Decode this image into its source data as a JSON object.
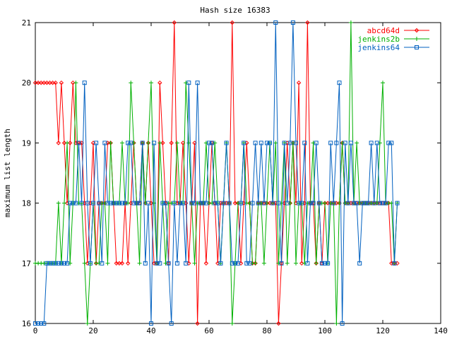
{
  "chart_data": {
    "type": "line",
    "title": "Hash size 16383",
    "xlabel": "",
    "ylabel": "maximum list length",
    "xlim": [
      0,
      140
    ],
    "ylim": [
      16,
      21
    ],
    "xticks": [
      0,
      20,
      40,
      60,
      80,
      100,
      120,
      140
    ],
    "yticks": [
      16,
      17,
      18,
      19,
      20,
      21
    ],
    "grid": false,
    "legend_position": "top-right",
    "series": [
      {
        "name": "abcd64d",
        "color": "#ff0000",
        "marker": "diamond",
        "x": [
          0,
          1,
          2,
          3,
          4,
          5,
          6,
          7,
          8,
          9,
          10,
          11,
          12,
          13,
          14,
          15,
          16,
          17,
          18,
          19,
          20,
          21,
          22,
          23,
          24,
          25,
          26,
          27,
          28,
          29,
          30,
          31,
          32,
          33,
          34,
          35,
          36,
          37,
          38,
          39,
          40,
          41,
          42,
          43,
          44,
          45,
          46,
          47,
          48,
          49,
          50,
          51,
          52,
          53,
          54,
          55,
          56,
          57,
          58,
          59,
          60,
          61,
          62,
          63,
          64,
          65,
          66,
          67,
          68,
          69,
          70,
          71,
          72,
          73,
          74,
          75,
          76,
          77,
          78,
          79,
          80,
          81,
          82,
          83,
          84,
          85,
          86,
          87,
          88,
          89,
          90,
          91,
          92,
          93,
          94,
          95,
          96,
          97,
          98,
          99,
          100,
          101,
          102,
          103,
          104,
          105,
          106,
          107,
          108,
          109,
          110,
          111,
          112,
          113,
          114,
          115,
          116,
          117,
          118,
          119,
          120,
          121,
          122,
          123,
          124,
          125
        ],
        "y": [
          20,
          20,
          20,
          20,
          20,
          20,
          20,
          20,
          19,
          20,
          19,
          18,
          19,
          20,
          19,
          19,
          19,
          18,
          17,
          18,
          19,
          17,
          18,
          18,
          18,
          19,
          19,
          18,
          17,
          17,
          17,
          18,
          17,
          18,
          19,
          18,
          18,
          19,
          18,
          19,
          18,
          17,
          17,
          20,
          19,
          18,
          17,
          19,
          21,
          18,
          18,
          19,
          18,
          17,
          18,
          19,
          16,
          18,
          18,
          17,
          18,
          19,
          18,
          17,
          18,
          18,
          18,
          18,
          21,
          18,
          18,
          17,
          18,
          19,
          18,
          17,
          17,
          18,
          18,
          18,
          18,
          18,
          18,
          18,
          16,
          17,
          18,
          19,
          18,
          19,
          18,
          20,
          17,
          18,
          21,
          18,
          18,
          17,
          18,
          17,
          18,
          18,
          18,
          18,
          18,
          18,
          19,
          18,
          18,
          18,
          18,
          18,
          18,
          18,
          18,
          18,
          18,
          18,
          18,
          18,
          18,
          18,
          18,
          17,
          17,
          17
        ]
      },
      {
        "name": "jenkins2b",
        "color": "#00b000",
        "marker": "plus",
        "x": [
          0,
          1,
          2,
          3,
          4,
          5,
          6,
          7,
          8,
          9,
          10,
          11,
          12,
          13,
          14,
          15,
          16,
          17,
          18,
          19,
          20,
          21,
          22,
          23,
          24,
          25,
          26,
          27,
          28,
          29,
          30,
          31,
          32,
          33,
          34,
          35,
          36,
          37,
          38,
          39,
          40,
          41,
          42,
          43,
          44,
          45,
          46,
          47,
          48,
          49,
          50,
          51,
          52,
          53,
          54,
          55,
          56,
          57,
          58,
          59,
          60,
          61,
          62,
          63,
          64,
          65,
          66,
          67,
          68,
          69,
          70,
          71,
          72,
          73,
          74,
          75,
          76,
          77,
          78,
          79,
          80,
          81,
          82,
          83,
          84,
          85,
          86,
          87,
          88,
          89,
          90,
          91,
          92,
          93,
          94,
          95,
          96,
          97,
          98,
          99,
          100,
          101,
          102,
          103,
          104,
          105,
          106,
          107,
          108,
          109,
          110,
          111,
          112,
          113,
          114,
          115,
          116,
          117,
          118,
          119,
          120,
          121,
          122,
          123,
          124,
          125
        ],
        "y": [
          17,
          17,
          17,
          17,
          17,
          17,
          17,
          17,
          18,
          17,
          18,
          19,
          17,
          18,
          20,
          18,
          18,
          17,
          16,
          17,
          18,
          17,
          17,
          18,
          18,
          17,
          19,
          18,
          18,
          18,
          19,
          18,
          18,
          20,
          19,
          18,
          17,
          19,
          18,
          19,
          20,
          18,
          17,
          19,
          18,
          17,
          18,
          18,
          18,
          19,
          18,
          18,
          20,
          19,
          18,
          17,
          18,
          18,
          18,
          19,
          18,
          18,
          19,
          18,
          17,
          18,
          19,
          18,
          16,
          17,
          18,
          18,
          19,
          18,
          18,
          17,
          17,
          18,
          18,
          17,
          18,
          19,
          18,
          19,
          17,
          18,
          19,
          17,
          18,
          19,
          17,
          18,
          18,
          17,
          18,
          18,
          19,
          17,
          18,
          18,
          18,
          17,
          18,
          18,
          16,
          18,
          19,
          18,
          18,
          21,
          18,
          19,
          18,
          18,
          18,
          18,
          18,
          18,
          18,
          19,
          20,
          18,
          18,
          18,
          17,
          18
        ]
      },
      {
        "name": "jenkins64",
        "color": "#0060c0",
        "marker": "square",
        "x": [
          0,
          1,
          2,
          3,
          4,
          5,
          6,
          7,
          8,
          9,
          10,
          11,
          12,
          13,
          14,
          15,
          16,
          17,
          18,
          19,
          20,
          21,
          22,
          23,
          24,
          25,
          26,
          27,
          28,
          29,
          30,
          31,
          32,
          33,
          34,
          35,
          36,
          37,
          38,
          39,
          40,
          41,
          42,
          43,
          44,
          45,
          46,
          47,
          48,
          49,
          50,
          51,
          52,
          53,
          54,
          55,
          56,
          57,
          58,
          59,
          60,
          61,
          62,
          63,
          64,
          65,
          66,
          67,
          68,
          69,
          70,
          71,
          72,
          73,
          74,
          75,
          76,
          77,
          78,
          79,
          80,
          81,
          82,
          83,
          84,
          85,
          86,
          87,
          88,
          89,
          90,
          91,
          92,
          93,
          94,
          95,
          96,
          97,
          98,
          99,
          100,
          101,
          102,
          103,
          104,
          105,
          106,
          107,
          108,
          109,
          110,
          111,
          112,
          113,
          114,
          115,
          116,
          117,
          118,
          119,
          120,
          121,
          122,
          123,
          124,
          125
        ],
        "y": [
          16,
          16,
          16,
          16,
          17,
          17,
          17,
          17,
          17,
          17,
          17,
          17,
          18,
          18,
          18,
          19,
          18,
          20,
          18,
          17,
          18,
          19,
          18,
          17,
          19,
          18,
          18,
          18,
          18,
          18,
          18,
          18,
          19,
          19,
          18,
          18,
          18,
          19,
          17,
          18,
          16,
          19,
          17,
          17,
          18,
          18,
          17,
          16,
          18,
          17,
          18,
          18,
          17,
          20,
          18,
          18,
          20,
          18,
          18,
          18,
          19,
          19,
          18,
          18,
          17,
          18,
          19,
          18,
          17,
          17,
          17,
          18,
          19,
          17,
          17,
          18,
          19,
          18,
          19,
          18,
          19,
          19,
          18,
          21,
          18,
          17,
          19,
          18,
          19,
          21,
          19,
          18,
          18,
          19,
          17,
          18,
          18,
          19,
          18,
          17,
          17,
          17,
          19,
          18,
          19,
          20,
          16,
          19,
          18,
          19,
          18,
          18,
          17,
          18,
          18,
          18,
          19,
          18,
          19,
          18,
          18,
          18,
          19,
          19,
          17,
          18
        ]
      }
    ]
  }
}
